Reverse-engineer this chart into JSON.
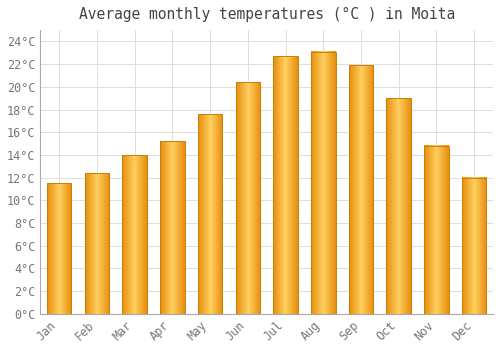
{
  "title": "Average monthly temperatures (°C ) in Moita",
  "months": [
    "Jan",
    "Feb",
    "Mar",
    "Apr",
    "May",
    "Jun",
    "Jul",
    "Aug",
    "Sep",
    "Oct",
    "Nov",
    "Dec"
  ],
  "values": [
    11.5,
    12.4,
    14.0,
    15.2,
    17.6,
    20.4,
    22.7,
    23.1,
    21.9,
    19.0,
    14.8,
    12.0
  ],
  "bar_color_light": "#FFD060",
  "bar_color_dark": "#E89010",
  "bar_edge_color": "#CC8000",
  "background_color": "#FFFFFF",
  "grid_color": "#DDDDDD",
  "text_color": "#777777",
  "ylim": [
    0,
    25
  ],
  "yticks": [
    0,
    2,
    4,
    6,
    8,
    10,
    12,
    14,
    16,
    18,
    20,
    22,
    24
  ],
  "title_fontsize": 10.5,
  "tick_fontsize": 8.5
}
